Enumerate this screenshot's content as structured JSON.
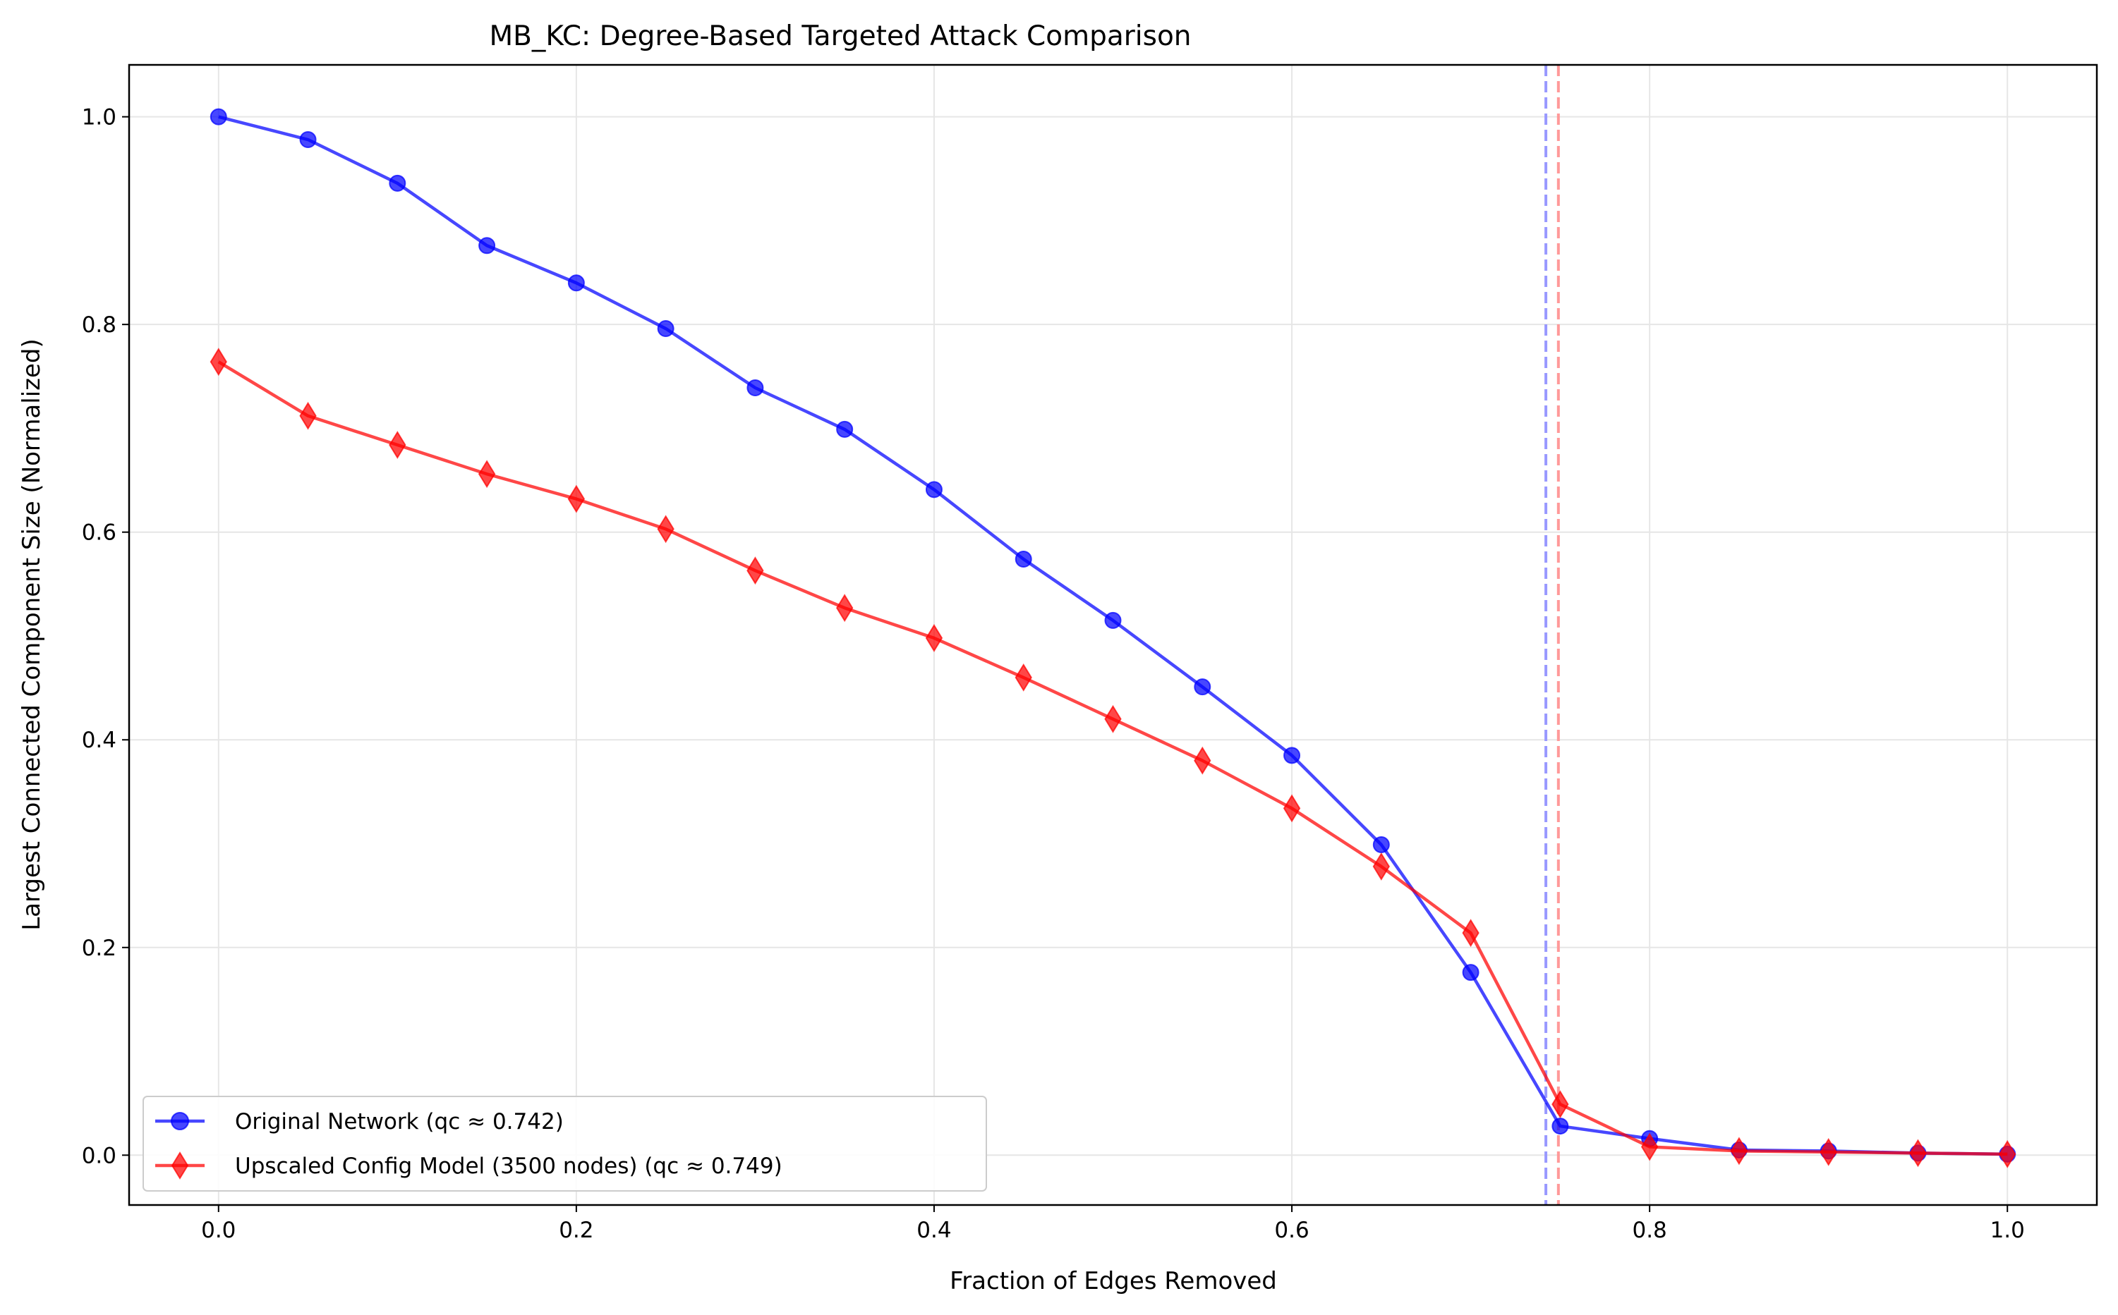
{
  "chart_data": {
    "type": "line",
    "title": "MB_KC: Degree-Based Targeted Attack Comparison",
    "xlabel": "Fraction of Edges Removed",
    "ylabel": "Largest Connected Component Size (Normalized)",
    "xlim": [
      -0.05,
      1.05
    ],
    "ylim": [
      -0.048,
      1.05
    ],
    "x_ticks": [
      0.0,
      0.2,
      0.4,
      0.6,
      0.8,
      1.0
    ],
    "x_tick_labels": [
      "0.0",
      "0.2",
      "0.4",
      "0.6",
      "0.8",
      "1.0"
    ],
    "y_ticks": [
      0.0,
      0.2,
      0.4,
      0.6,
      0.8,
      1.0
    ],
    "y_tick_labels": [
      "0.0",
      "0.2",
      "0.4",
      "0.6",
      "0.8",
      "1.0"
    ],
    "grid": true,
    "legend_position": "lower-left",
    "x": [
      0.0,
      0.05,
      0.1,
      0.15,
      0.2,
      0.25,
      0.3,
      0.35,
      0.4,
      0.45,
      0.5,
      0.55,
      0.6,
      0.65,
      0.7,
      0.75,
      0.8,
      0.85,
      0.9,
      0.95,
      1.0
    ],
    "series": [
      {
        "name": "Original Network (qc ≈ 0.742)",
        "color": "#0000ff",
        "marker": "circle",
        "values": [
          1.0,
          0.978,
          0.936,
          0.876,
          0.84,
          0.796,
          0.739,
          0.699,
          0.641,
          0.574,
          0.515,
          0.451,
          0.385,
          0.299,
          0.176,
          0.028,
          0.016,
          0.005,
          0.004,
          0.002,
          0.001
        ]
      },
      {
        "name": "Upscaled Config Model (3500 nodes) (qc ≈ 0.749)",
        "color": "#ff0000",
        "marker": "diamond",
        "values": [
          0.764,
          0.712,
          0.684,
          0.656,
          0.632,
          0.603,
          0.563,
          0.527,
          0.498,
          0.46,
          0.42,
          0.38,
          0.334,
          0.278,
          0.214,
          0.049,
          0.008,
          0.004,
          0.003,
          0.002,
          0.001
        ]
      }
    ],
    "threshold_lines": [
      {
        "x": 0.742,
        "color": "#9999ff",
        "style": "dashed"
      },
      {
        "x": 0.749,
        "color": "#ff9999",
        "style": "dashed"
      }
    ]
  }
}
